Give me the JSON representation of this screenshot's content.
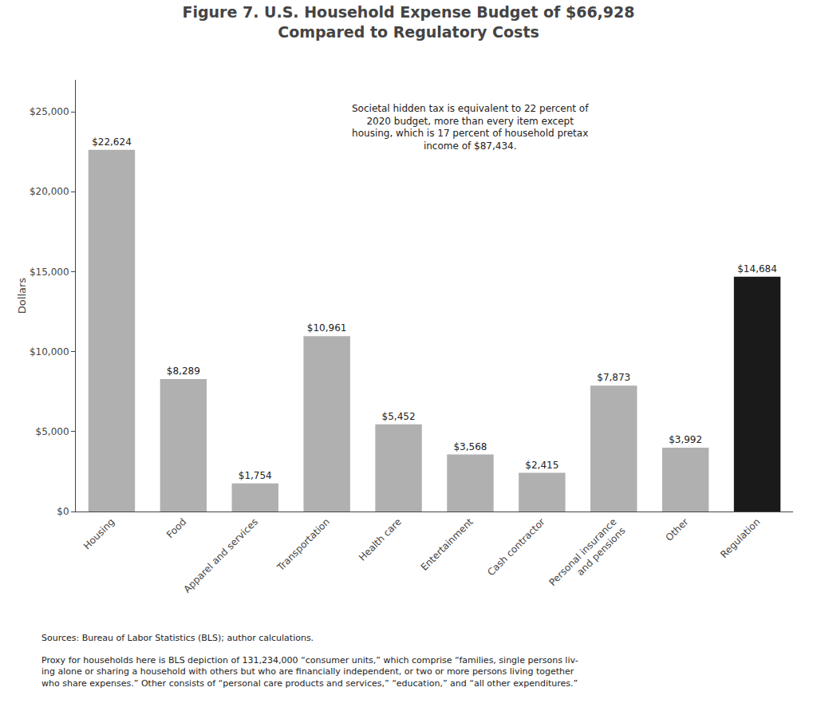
{
  "chart_data": {
    "type": "bar",
    "title": "Figure 7. U.S. Household Expense Budget of $66,928\nCompared to Regulatory Costs",
    "categories": [
      "Housing",
      "Food",
      "Apparel and services",
      "Transportation",
      "Health care",
      "Entertainment",
      "Cash contractor",
      "Personal insurance\nand pensions",
      "Other",
      "Regulation"
    ],
    "values": [
      22624,
      8289,
      1754,
      10961,
      5452,
      3568,
      2415,
      7873,
      3992,
      14684
    ],
    "value_labels": [
      "$22,624",
      "$8,289",
      "$1,754",
      "$10,961",
      "$5,452",
      "$3,568",
      "$2,415",
      "$7,873",
      "$3,992",
      "$14,684"
    ],
    "data_labels": true,
    "colors": [
      "#b0b0b0",
      "#b0b0b0",
      "#b0b0b0",
      "#b0b0b0",
      "#b0b0b0",
      "#b0b0b0",
      "#b0b0b0",
      "#b0b0b0",
      "#b0b0b0",
      "#1a1a1a"
    ],
    "ylabel": "Dollars",
    "ylim": [
      0,
      27000
    ],
    "yticks": [
      {
        "value": 0,
        "label": "$0"
      },
      {
        "value": 5000,
        "label": "$5,000"
      },
      {
        "value": 10000,
        "label": "$10,000"
      },
      {
        "value": 15000,
        "label": "$15,000"
      },
      {
        "value": 20000,
        "label": "$20,000"
      },
      {
        "value": 25000,
        "label": "$25,000"
      }
    ],
    "grid": false,
    "annotations": [
      "Societal hidden tax is equivalent to 22 percent of\n2020 budget, more than every item except\nhousing, which is 17 percent of household pretax\nincome of $87,434.",
      "Sources: Bureau of Labor Statistics (BLS); author calculations.",
      "Proxy for households here is BLS depiction of 131,234,000 “consumer units,” which comprise “families, single persons liv-\ning alone or sharing a household with others but who are financially independent, or two or more persons living together\nwho share expenses.” Other consists of “personal care products and services,” “education,” and “all other expenditures.”"
    ]
  }
}
